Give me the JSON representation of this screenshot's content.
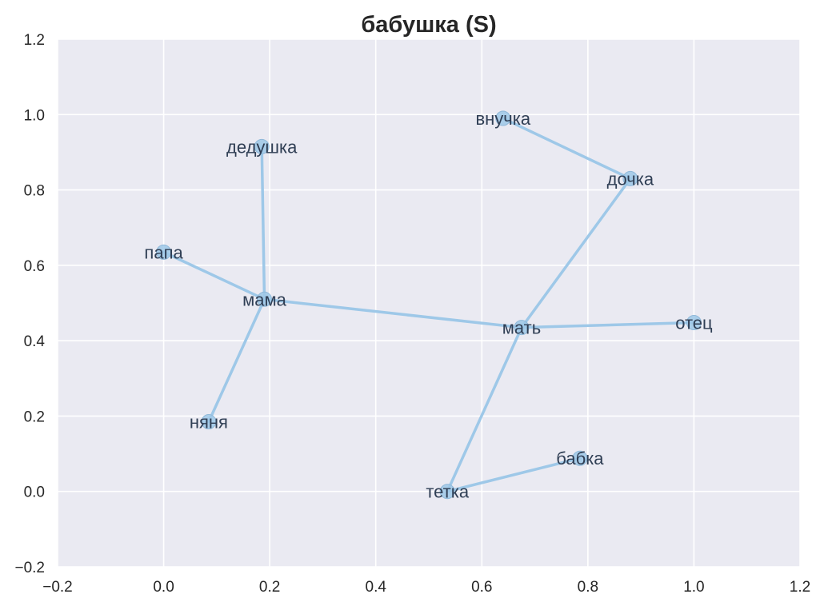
{
  "chart_data": {
    "type": "scatter",
    "title": "бабушка (S)",
    "xlabel": "",
    "ylabel": "",
    "xlim": [
      -0.2,
      1.2
    ],
    "ylim": [
      -0.2,
      1.2
    ],
    "xticks": [
      -0.2,
      0.0,
      0.2,
      0.4,
      0.6,
      0.8,
      1.0,
      1.2
    ],
    "yticks": [
      -0.2,
      0.0,
      0.2,
      0.4,
      0.6,
      0.8,
      1.0,
      1.2
    ],
    "xtick_labels": [
      "−0.2",
      "0.0",
      "0.2",
      "0.4",
      "0.6",
      "0.8",
      "1.0",
      "1.2"
    ],
    "ytick_labels": [
      "−0.2",
      "0.0",
      "0.2",
      "0.4",
      "0.6",
      "0.8",
      "1.0",
      "1.2"
    ],
    "grid": true,
    "colors": {
      "plot_bg": "#eaeaf2",
      "grid": "#ffffff",
      "edge": "#9ec8e8",
      "node": "#9ec8e8",
      "node_label": "#2f3e54"
    },
    "points": [
      {
        "label": "внучка",
        "x": 0.64,
        "y": 0.99
      },
      {
        "label": "дочка",
        "x": 0.88,
        "y": 0.83
      },
      {
        "label": "дедушка",
        "x": 0.185,
        "y": 0.915
      },
      {
        "label": "папа",
        "x": 0.0,
        "y": 0.635
      },
      {
        "label": "мама",
        "x": 0.19,
        "y": 0.51
      },
      {
        "label": "мать",
        "x": 0.675,
        "y": 0.435
      },
      {
        "label": "отец",
        "x": 1.0,
        "y": 0.448
      },
      {
        "label": "няня",
        "x": 0.085,
        "y": 0.185
      },
      {
        "label": "бабка",
        "x": 0.785,
        "y": 0.088
      },
      {
        "label": "тетка",
        "x": 0.535,
        "y": 0.0
      }
    ],
    "edges": [
      [
        "внучка",
        "дочка"
      ],
      [
        "дочка",
        "мать"
      ],
      [
        "дедушка",
        "мама"
      ],
      [
        "папа",
        "мама"
      ],
      [
        "мама",
        "мать"
      ],
      [
        "мама",
        "няня"
      ],
      [
        "мать",
        "отец"
      ],
      [
        "мать",
        "тетка"
      ],
      [
        "тетка",
        "бабка"
      ]
    ]
  }
}
